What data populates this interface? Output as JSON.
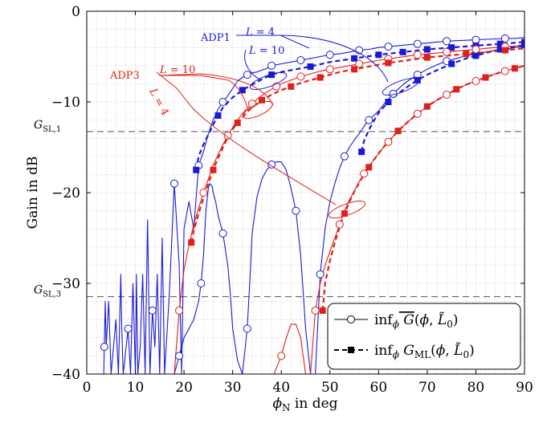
{
  "chart_data": {
    "type": "line",
    "xlabel": "ϕN in deg",
    "ylabel": "Gain in dB",
    "xlim": [
      0,
      90
    ],
    "ylim": [
      -40,
      0
    ],
    "xticks": [
      "0",
      "10",
      "20",
      "30",
      "40",
      "50",
      "60",
      "70",
      "80",
      "90"
    ],
    "yticks": [
      "−40",
      "−30",
      "−20",
      "−10",
      "0"
    ],
    "grid": "minor dotted",
    "legend_position": "bottom-right",
    "legend": [
      {
        "label": "infϕ G̅(ϕ, L̃0)",
        "marker": "open circle, solid line"
      },
      {
        "label": "infϕ G̅ML(ϕ, L̃0)",
        "marker": "filled square, dashed line"
      }
    ],
    "reference_lines": [
      {
        "label": "GSL,1",
        "y": -13.26
      },
      {
        "label": "GSL,3",
        "y": -31.47
      }
    ],
    "annotations": [
      {
        "text": "ADP1",
        "color": "#1a1ad6"
      },
      {
        "text": "L = 4",
        "color": "#1a1ad6"
      },
      {
        "text": "L = 10",
        "color": "#1a1ad6"
      },
      {
        "text": "ADP3",
        "color": "#e0201a"
      },
      {
        "text": "L = 10",
        "color": "#e0201a"
      },
      {
        "text": "L = 4",
        "color": "#e0201a"
      }
    ],
    "colors": {
      "adp1": "#1a1ad6",
      "adp3": "#e0201a",
      "reference": "#555555"
    },
    "series": [
      {
        "name": "ADP1, L = 4, inf G",
        "color": "#1a1ad6",
        "style": "solid",
        "marker": "circle",
        "x": [
          3.5,
          3.6,
          3.8,
          4,
          4.5,
          5,
          6,
          6.5,
          7,
          7.2,
          7.5,
          8.5,
          9,
          9.5,
          10,
          10.2,
          10.5,
          11,
          11.5,
          12,
          12.5,
          13,
          13.5,
          14,
          14.5,
          15,
          15.5,
          16,
          17,
          18,
          19,
          19.5,
          20,
          21,
          22,
          23,
          24,
          25,
          26,
          27,
          28,
          29,
          30,
          31,
          32,
          33,
          34,
          35,
          36,
          37,
          38,
          40,
          42,
          44,
          46,
          48,
          50,
          52,
          54,
          56,
          58,
          60,
          62,
          64,
          66,
          68,
          70,
          72,
          74,
          76,
          78,
          80,
          82,
          84,
          86,
          88,
          90
        ],
        "y": [
          -40,
          -37,
          -32,
          -37,
          -32,
          -40,
          -34,
          -40,
          -29,
          -35,
          -40,
          -35,
          -40,
          -30,
          -40,
          -29,
          -40,
          -37,
          -29,
          -40,
          -23,
          -40,
          -33,
          -37,
          -29,
          -40,
          -25,
          -40,
          -31,
          -19,
          -28,
          -40,
          -24,
          -21,
          -24,
          -17,
          -15.5,
          -13.5,
          -12,
          -10.8,
          -10,
          -9.3,
          -8.5,
          -7.7,
          -7.3,
          -7,
          -6.8,
          -6.7,
          -6.5,
          -6.3,
          -6,
          -5.8,
          -5.6,
          -5.4,
          -5.2,
          -5.0,
          -4.8,
          -4.7,
          -4.5,
          -4.3,
          -4.2,
          -4.0,
          -3.9,
          -3.8,
          -3.7,
          -3.6,
          -3.5,
          -3.4,
          -3.3,
          -3.25,
          -3.2,
          -3.15,
          -3.1,
          -3.05,
          -3.0,
          -3.0,
          -2.9
        ]
      },
      {
        "name": "ADP1, L = 4, inf GML",
        "color": "#1a1ad6",
        "style": "dashed",
        "marker": "square",
        "x": [
          22.5,
          23,
          24,
          25,
          26,
          27,
          28,
          30,
          32,
          34,
          35,
          36,
          38,
          40,
          42,
          46,
          50,
          55,
          60,
          65,
          70,
          75,
          80,
          85,
          90
        ],
        "y": [
          -17.5,
          -16,
          -14.7,
          -13.6,
          -12.5,
          -11.5,
          -10.6,
          -9.5,
          -8.7,
          -8.1,
          -7.8,
          -7.5,
          -7.0,
          -6.7,
          -6.5,
          -6.1,
          -5.6,
          -5.2,
          -4.8,
          -4.5,
          -4.2,
          -4.0,
          -3.8,
          -3.6,
          -3.4
        ]
      },
      {
        "name": "ADP1, L = 10, inf G",
        "color": "#1a1ad6",
        "style": "solid",
        "marker": "circle",
        "x": [
          18,
          19,
          20,
          21,
          22,
          23,
          23.5,
          24,
          24.5,
          25,
          25.3,
          25.8,
          26,
          26.5,
          27,
          28,
          29,
          29.5,
          30,
          31,
          32,
          33,
          33.5,
          34,
          35,
          36,
          37,
          38,
          39,
          40,
          41,
          42,
          43,
          44,
          44.5,
          45,
          46,
          47,
          48,
          49,
          50,
          51,
          52,
          53,
          54,
          55,
          56,
          57,
          58,
          59,
          60,
          61,
          62,
          63,
          64,
          65,
          66,
          68,
          70,
          72,
          74,
          76,
          78,
          80,
          82,
          84,
          86,
          88,
          90
        ],
        "y": [
          -40,
          -38,
          -36,
          -35,
          -34,
          -32,
          -30,
          -27,
          -22,
          -19.5,
          -19,
          -19.3,
          -20,
          -21,
          -22.5,
          -24.5,
          -28,
          -31,
          -35,
          -38.5,
          -40,
          -35,
          -30,
          -24.5,
          -20.5,
          -18.5,
          -17.5,
          -16.9,
          -16.6,
          -16.6,
          -17.5,
          -19.5,
          -22,
          -27,
          -31,
          -35,
          -40,
          -40,
          -29,
          -24,
          -21,
          -19,
          -17.3,
          -16,
          -15,
          -14.2,
          -13.5,
          -12.7,
          -12,
          -11.5,
          -11,
          -10.3,
          -9.7,
          -9.1,
          -8.6,
          -8.1,
          -7.7,
          -7.0,
          -6.4,
          -5.9,
          -5.5,
          -5.2,
          -4.9,
          -4.7,
          -4.5,
          -4.3,
          -4.2,
          -4.0,
          -3.9
        ]
      },
      {
        "name": "ADP1, L = 10, inf GML",
        "color": "#1a1ad6",
        "style": "dashed",
        "marker": "square",
        "x": [
          56.5,
          57,
          58,
          59,
          60,
          62,
          64,
          66,
          68,
          70,
          72,
          75,
          78,
          80,
          82,
          85,
          88,
          90
        ],
        "y": [
          -15.5,
          -14.3,
          -13.1,
          -12.1,
          -11.2,
          -10,
          -9.1,
          -8.3,
          -7.6,
          -7.0,
          -6.5,
          -5.8,
          -5.2,
          -4.9,
          -4.6,
          -4.2,
          -3.9,
          -3.7
        ]
      },
      {
        "name": "ADP3, L = 10, inf G",
        "color": "#e0201a",
        "style": "solid",
        "marker": "circle",
        "x": [
          16,
          17,
          18,
          19,
          20,
          21,
          22,
          23,
          24,
          25,
          26,
          27,
          28,
          29,
          30,
          31,
          32,
          33,
          34,
          35,
          36,
          37,
          38,
          39,
          40,
          42,
          44,
          46,
          48,
          50,
          52,
          54,
          56,
          58,
          60,
          62,
          64,
          66,
          68,
          70,
          72,
          74,
          76,
          78,
          80,
          82,
          84,
          86,
          88,
          90
        ],
        "y": [
          -40,
          -40,
          -40,
          -33,
          -28.5,
          -25.8,
          -23.5,
          -21.7,
          -20,
          -18.5,
          -17,
          -15.8,
          -14.7,
          -13.7,
          -12.8,
          -12.0,
          -11.3,
          -10.7,
          -10.2,
          -9.7,
          -9.3,
          -8.9,
          -8.6,
          -8.3,
          -8.0,
          -7.6,
          -7.2,
          -6.9,
          -6.6,
          -6.4,
          -6.2,
          -6.0,
          -5.8,
          -5.6,
          -5.4,
          -5.25,
          -5.1,
          -4.95,
          -4.8,
          -4.7,
          -4.6,
          -4.5,
          -4.4,
          -4.3,
          -4.2,
          -4.1,
          -4.0,
          -3.9,
          -3.85,
          -3.8
        ]
      },
      {
        "name": "ADP3, L = 10, inf GML",
        "color": "#e0201a",
        "style": "dashed",
        "marker": "square",
        "x": [
          21.5,
          22,
          23,
          24,
          25,
          26,
          27,
          28,
          29,
          30,
          31,
          32,
          33,
          34,
          36,
          38,
          40,
          42,
          44,
          46,
          48,
          50,
          52,
          55,
          58,
          62,
          66,
          70,
          74,
          78,
          82,
          86,
          90
        ],
        "y": [
          -25.5,
          -24.2,
          -22.3,
          -20.6,
          -19.0,
          -17.5,
          -16.2,
          -15.0,
          -13.9,
          -13.0,
          -12.3,
          -11.7,
          -11.1,
          -10.6,
          -9.8,
          -9.2,
          -8.7,
          -8.3,
          -7.9,
          -7.6,
          -7.3,
          -7.0,
          -6.7,
          -6.4,
          -6.1,
          -5.7,
          -5.4,
          -5.1,
          -4.9,
          -4.7,
          -4.5,
          -4.3,
          -4.1
        ]
      },
      {
        "name": "ADP3, L = 4, inf G",
        "color": "#e0201a",
        "style": "solid",
        "marker": "circle",
        "x": [
          38.5,
          40,
          41,
          42,
          43,
          44,
          45,
          46,
          47,
          48,
          49,
          50,
          51,
          52,
          53,
          54,
          55,
          56,
          57,
          58,
          59,
          60,
          61,
          62,
          64,
          66,
          68,
          70,
          72,
          74,
          76,
          78,
          80,
          82,
          84,
          86,
          88,
          90
        ],
        "y": [
          -40,
          -38,
          -36,
          -34.5,
          -34.5,
          -36,
          -40,
          -40,
          -33,
          -30,
          -28,
          -26.5,
          -25,
          -23.5,
          -22,
          -20.8,
          -19.8,
          -18.8,
          -17.9,
          -17.1,
          -16.4,
          -15.7,
          -15.0,
          -14.4,
          -13.2,
          -12.2,
          -11.3,
          -10.5,
          -9.8,
          -9.2,
          -8.6,
          -8.1,
          -7.7,
          -7.3,
          -6.9,
          -6.6,
          -6.3,
          -6.0
        ]
      },
      {
        "name": "ADP3, L = 4, inf GML",
        "color": "#e0201a",
        "style": "dashed",
        "marker": "square",
        "x": [
          48.5,
          49,
          50,
          51,
          52,
          53,
          54,
          55,
          56,
          57,
          58,
          59,
          60,
          61,
          62,
          64,
          66,
          68,
          70,
          72,
          74,
          76,
          78,
          80,
          82,
          84,
          86,
          88,
          90
        ],
        "y": [
          -33,
          -30,
          -27.5,
          -25.5,
          -23.8,
          -22.3,
          -21.0,
          -19.9,
          -18.9,
          -18.0,
          -17.2,
          -16.4,
          -15.7,
          -15.0,
          -14.4,
          -13.2,
          -12.2,
          -11.3,
          -10.5,
          -9.8,
          -9.2,
          -8.6,
          -8.1,
          -7.7,
          -7.3,
          -6.9,
          -6.6,
          -6.3,
          -6.0
        ]
      }
    ]
  }
}
